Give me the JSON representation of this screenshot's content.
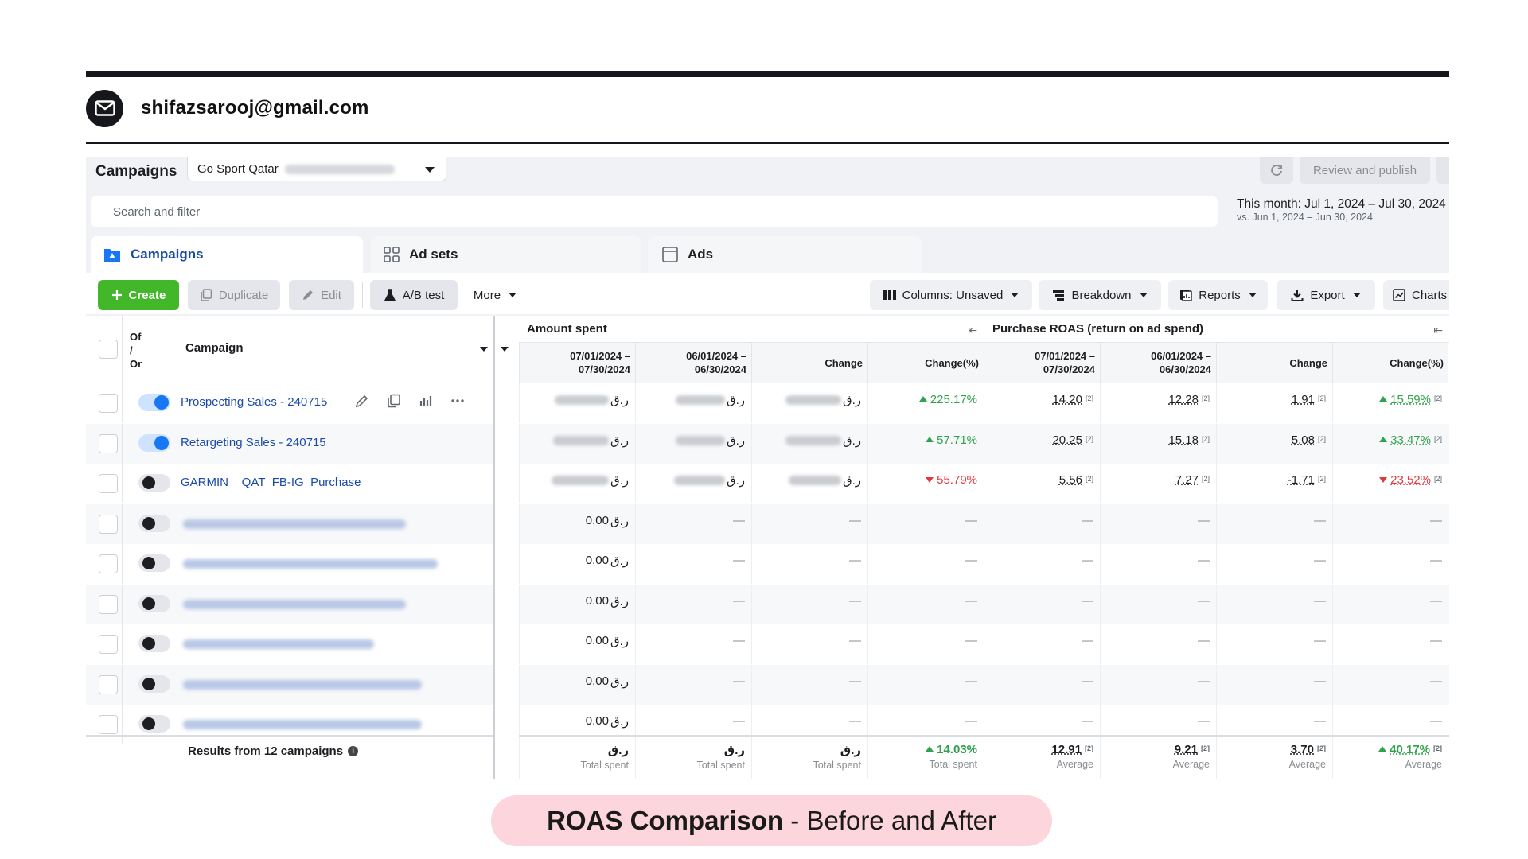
{
  "header": {
    "email": "shifazsarooj@gmail.com"
  },
  "top": {
    "campaigns_label": "Campaigns",
    "account": "Go Sport Qatar",
    "review_label": "Review and publish",
    "search_placeholder": "Search and filter",
    "date_main": "This month: Jul 1, 2024 – Jul 30, 2024",
    "date_compare": "vs. Jun 1, 2024 – Jun 30, 2024"
  },
  "tabs": {
    "campaigns": "Campaigns",
    "adsets": "Ad sets",
    "ads": "Ads"
  },
  "toolbar": {
    "create": "Create",
    "duplicate": "Duplicate",
    "edit": "Edit",
    "ab_test": "A/B test",
    "more": "More",
    "columns": "Columns: Unsaved",
    "breakdown": "Breakdown",
    "reports": "Reports",
    "export": "Export",
    "charts": "Charts"
  },
  "table": {
    "col_onoff": "Of\n/\nOr",
    "col_campaign": "Campaign",
    "group_amount": "Amount spent",
    "group_roas": "Purchase ROAS (return on ad spend)",
    "sub_period1": "07/01/2024 –\n07/30/2024",
    "sub_period2": "06/01/2024 –\n06/30/2024",
    "sub_change": "Change",
    "sub_change_pct": "Change(%)",
    "currency": "ر.ق",
    "dash": "—",
    "footnote": "[2]",
    "rows": [
      {
        "name": "Prospecting Sales - 240715",
        "on": true,
        "amount_pct": "225.17%",
        "amount_dir": "up",
        "roas1": "14.20",
        "roas2": "12.28",
        "roas_change": "1.91",
        "roas_pct": "15.59%",
        "roas_dir": "up"
      },
      {
        "name": "Retargeting Sales - 240715",
        "on": true,
        "amount_pct": "57.71%",
        "amount_dir": "up",
        "roas1": "20.25",
        "roas2": "15.18",
        "roas_change": "5.08",
        "roas_pct": "33.47%",
        "roas_dir": "up"
      },
      {
        "name": "GARMIN__QAT_FB-IG_Purchase",
        "on": false,
        "amount_pct": "55.79%",
        "amount_dir": "down",
        "roas1": "5.56",
        "roas2": "7.27",
        "roas_change": "-1.71",
        "roas_pct": "23.52%",
        "roas_dir": "down"
      },
      {
        "name": "",
        "on": false,
        "zero": "0.00"
      },
      {
        "name": "",
        "on": false,
        "zero": "0.00"
      },
      {
        "name": "",
        "on": false,
        "zero": "0.00"
      },
      {
        "name": "",
        "on": false,
        "zero": "0.00"
      },
      {
        "name": "",
        "on": false,
        "zero": "0.00"
      },
      {
        "name": "",
        "on": false,
        "zero": "0.00"
      }
    ],
    "footer": {
      "results": "Results from 12 campaigns",
      "amount_pct": "14.03%",
      "roas1": "12.91",
      "roas2": "9.21",
      "roas_change": "3.70",
      "roas_pct": "40.17%",
      "label_total": "Total spent",
      "label_avg": "Average"
    }
  },
  "caption": {
    "bold": "ROAS Comparison",
    "rest": " - Before and After"
  },
  "colors": {
    "positive": "#31a24c",
    "negative": "#e0393e",
    "link": "#1b4aa8",
    "create": "#42b72a",
    "caption_bg": "#fdd5dc"
  }
}
